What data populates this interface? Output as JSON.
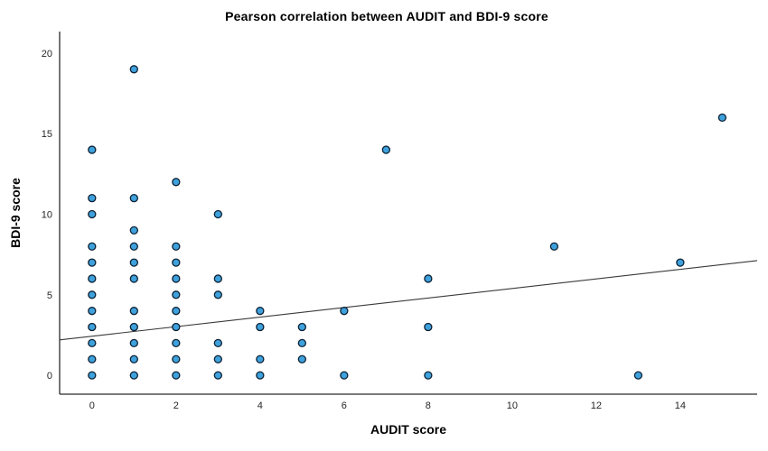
{
  "chart_data": {
    "type": "scatter",
    "title": "Pearson correlation between AUDIT and BDI-9 score",
    "xlabel": "AUDIT score",
    "ylabel": "BDI-9 score",
    "xlim": [
      -0.77,
      15.83
    ],
    "ylim": [
      -1.17,
      21.34
    ],
    "x_ticks": [
      0,
      2,
      4,
      6,
      8,
      10,
      12,
      14
    ],
    "y_ticks": [
      0,
      5,
      10,
      15,
      20
    ],
    "grid": false,
    "legend": false,
    "points": [
      [
        0,
        0
      ],
      [
        0,
        1
      ],
      [
        0,
        2
      ],
      [
        0,
        3
      ],
      [
        0,
        4
      ],
      [
        0,
        5
      ],
      [
        0,
        6
      ],
      [
        0,
        7
      ],
      [
        0,
        8
      ],
      [
        0,
        10
      ],
      [
        0,
        11
      ],
      [
        0,
        14
      ],
      [
        1,
        0
      ],
      [
        1,
        1
      ],
      [
        1,
        2
      ],
      [
        1,
        3
      ],
      [
        1,
        4
      ],
      [
        1,
        6
      ],
      [
        1,
        7
      ],
      [
        1,
        8
      ],
      [
        1,
        9
      ],
      [
        1,
        11
      ],
      [
        1,
        19
      ],
      [
        2,
        0
      ],
      [
        2,
        1
      ],
      [
        2,
        2
      ],
      [
        2,
        3
      ],
      [
        2,
        4
      ],
      [
        2,
        5
      ],
      [
        2,
        6
      ],
      [
        2,
        7
      ],
      [
        2,
        8
      ],
      [
        2,
        12
      ],
      [
        3,
        0
      ],
      [
        3,
        1
      ],
      [
        3,
        2
      ],
      [
        3,
        5
      ],
      [
        3,
        6
      ],
      [
        3,
        10
      ],
      [
        4,
        0
      ],
      [
        4,
        1
      ],
      [
        4,
        3
      ],
      [
        4,
        4
      ],
      [
        5,
        1
      ],
      [
        5,
        2
      ],
      [
        5,
        3
      ],
      [
        6,
        0
      ],
      [
        6,
        4
      ],
      [
        7,
        14
      ],
      [
        8,
        0
      ],
      [
        8,
        3
      ],
      [
        8,
        6
      ],
      [
        11,
        8
      ],
      [
        13,
        0
      ],
      [
        14,
        7
      ],
      [
        15,
        16
      ]
    ],
    "trend_line": {
      "x1": -0.77,
      "y1": 2.2,
      "x2": 15.83,
      "y2": 7.12
    },
    "marker": {
      "radius": 4,
      "fill": "#3EA1DC",
      "stroke": "#0D2134",
      "stroke_width": 1.3
    },
    "colors": {
      "axis": "#2b2b2b",
      "trend": "#3a3a3a",
      "tick_text": "#262626"
    }
  }
}
